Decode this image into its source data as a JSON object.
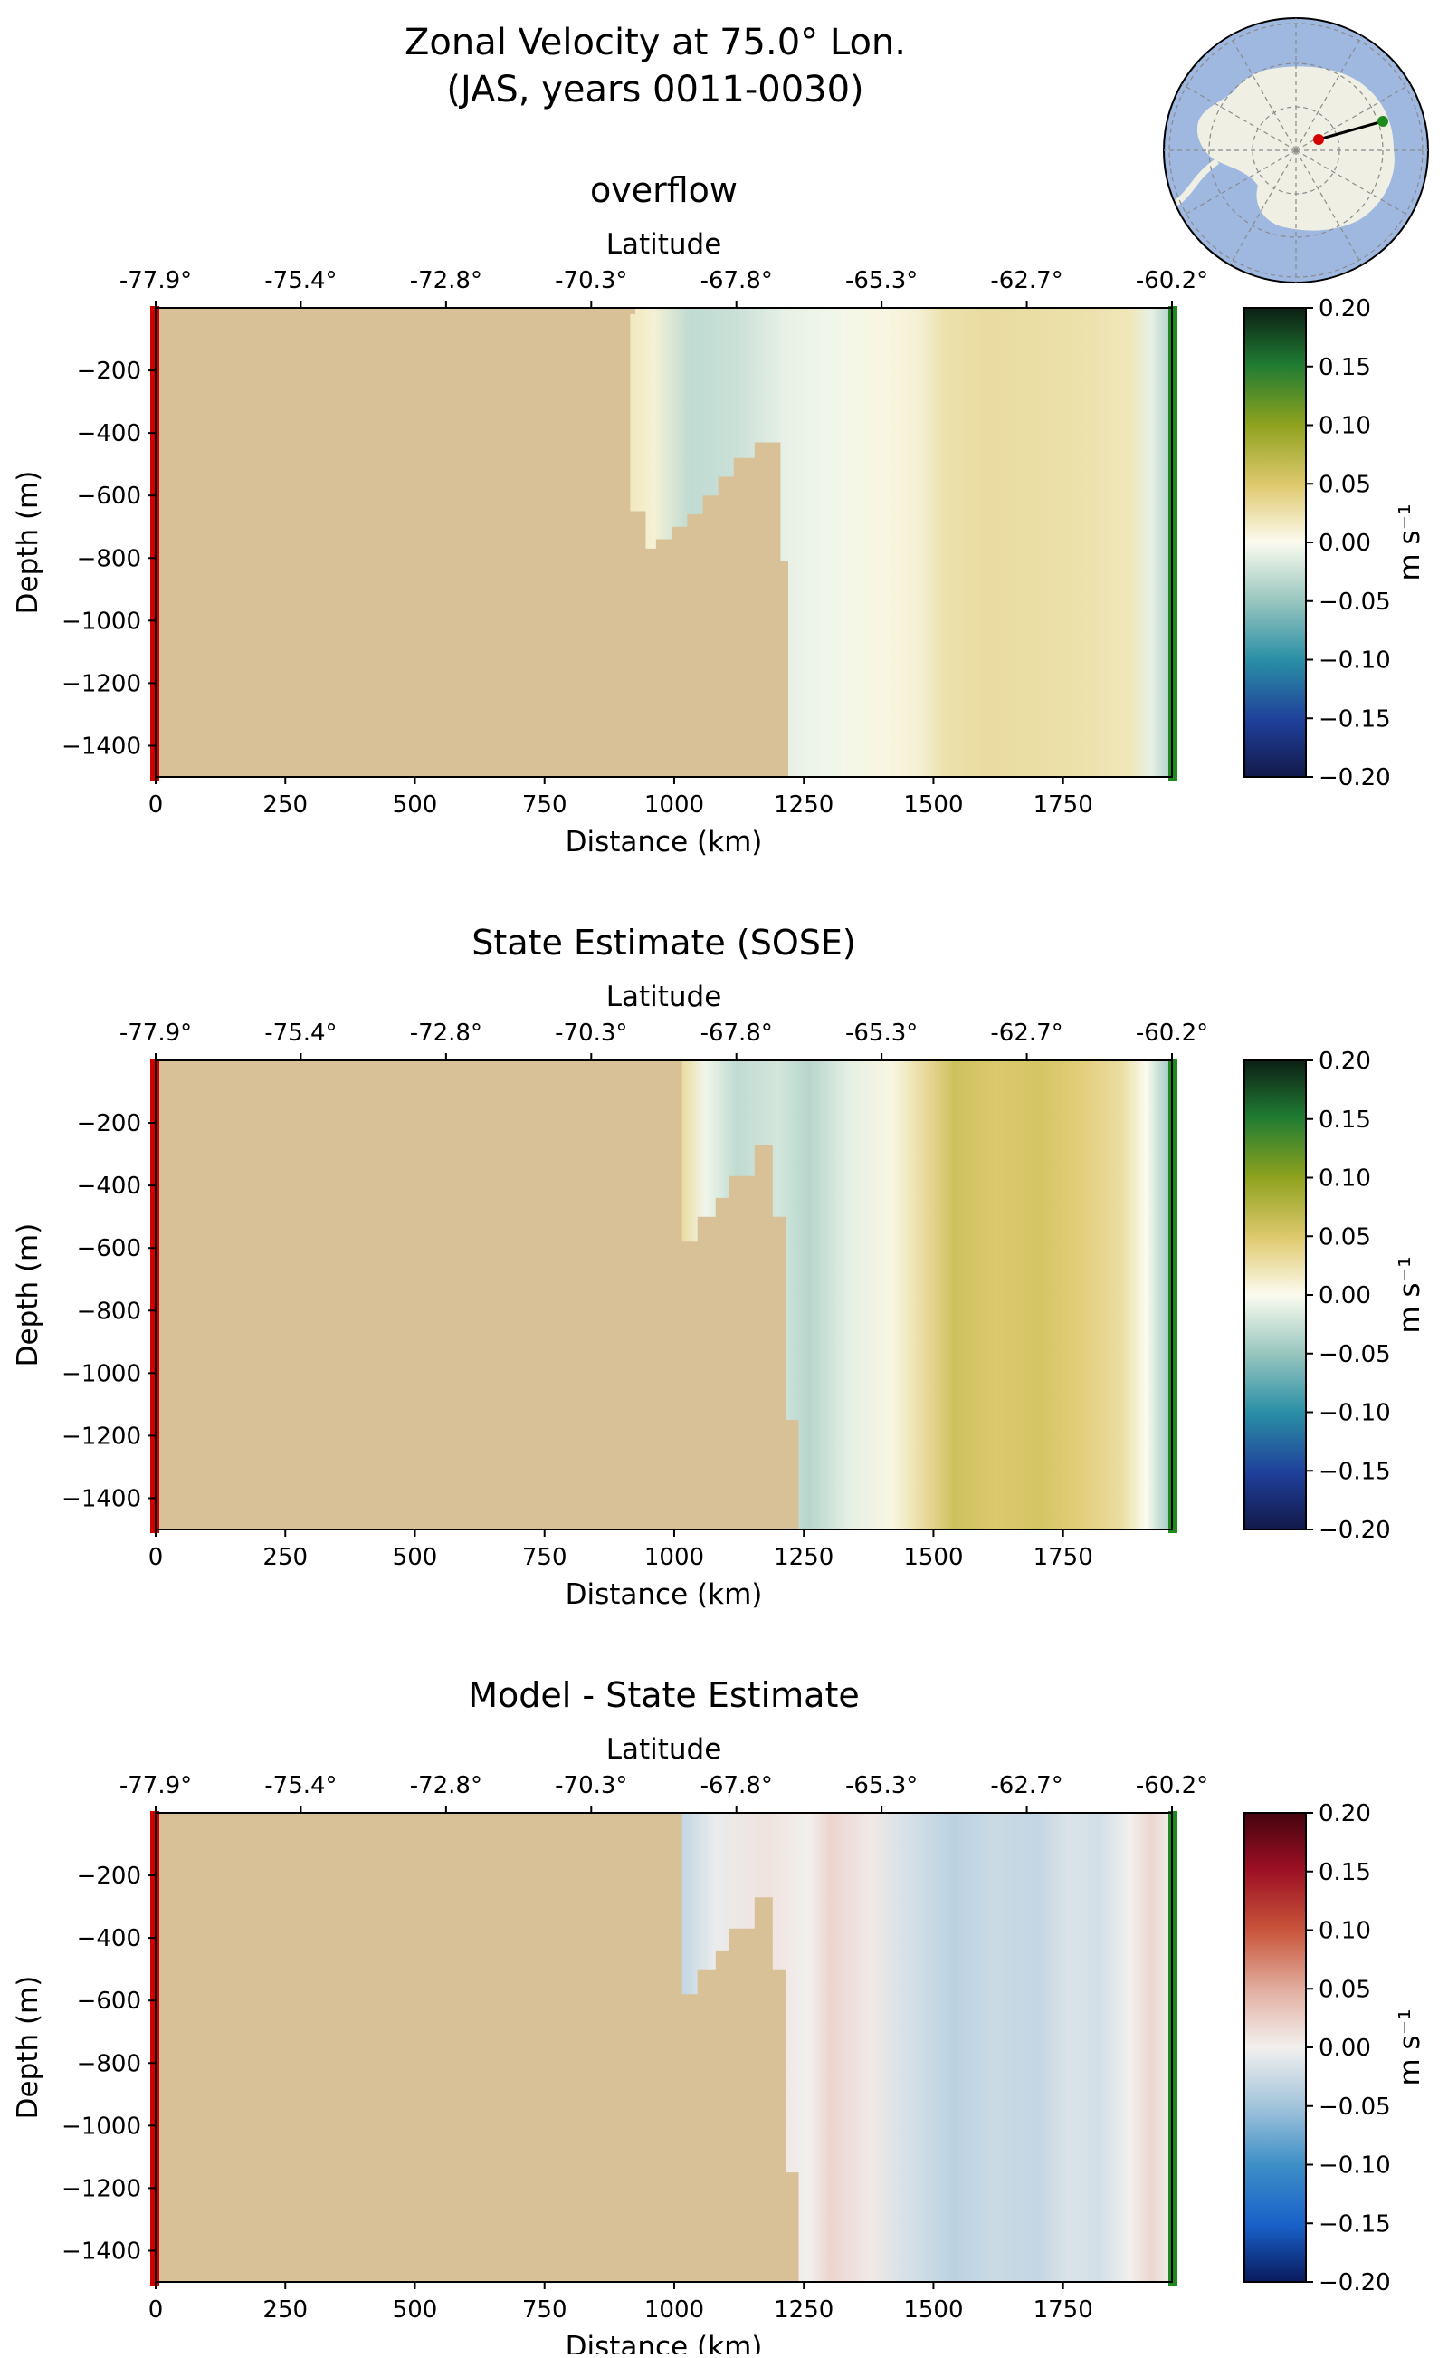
{
  "figure": {
    "title_line1": "Zonal Velocity at 75.0° Lon.",
    "title_line2": "(JAS, years 0011-0030)"
  },
  "colors": {
    "land": "#d8c097",
    "section_start": "#d40000",
    "section_end": "#1e8a1e",
    "ocean_on_globe": "#9fb8e0",
    "antarctica_on_globe": "#f0efe3"
  },
  "inset_map": {
    "type": "south-polar-stereographic",
    "section_start_lat": -77.9,
    "section_end_lat": -60.2,
    "longitude": 75.0
  },
  "chart_data": [
    {
      "type": "heatmap",
      "title": "overflow",
      "xlabel": "Distance (km)",
      "ylabel": "Depth (m)",
      "top_xlabel": "Latitude",
      "xlim": [
        0,
        1960
      ],
      "ylim": [
        -1500,
        0
      ],
      "x_ticks": [
        0,
        250,
        500,
        750,
        1000,
        1250,
        1500,
        1750
      ],
      "y_ticks": [
        -200,
        -400,
        -600,
        -800,
        -1000,
        -1200,
        -1400
      ],
      "top_ticks": [
        "-77.9°",
        "-75.4°",
        "-72.8°",
        "-70.3°",
        "-67.8°",
        "-65.3°",
        "-62.7°",
        "-60.2°"
      ],
      "colorbar": {
        "label": "m s⁻¹",
        "colormap": "gist_earth-like",
        "vmin": -0.2,
        "vmax": 0.2,
        "ticks": [
          0.2,
          0.15,
          0.1,
          0.05,
          0.0,
          -0.05,
          -0.1,
          -0.15,
          -0.2
        ]
      },
      "bathymetry": [
        [
          0,
          0
        ],
        [
          925,
          0
        ],
        [
          925,
          -20
        ],
        [
          915,
          -20
        ],
        [
          915,
          -650
        ],
        [
          945,
          -650
        ],
        [
          945,
          -770
        ],
        [
          965,
          -770
        ],
        [
          965,
          -740
        ],
        [
          995,
          -740
        ],
        [
          995,
          -700
        ],
        [
          1025,
          -700
        ],
        [
          1025,
          -660
        ],
        [
          1055,
          -660
        ],
        [
          1055,
          -600
        ],
        [
          1085,
          -600
        ],
        [
          1085,
          -540
        ],
        [
          1115,
          -540
        ],
        [
          1115,
          -480
        ],
        [
          1155,
          -480
        ],
        [
          1155,
          -430
        ],
        [
          1205,
          -430
        ],
        [
          1205,
          -810
        ],
        [
          1220,
          -810
        ],
        [
          1220,
          -1500
        ],
        [
          0,
          -1500
        ]
      ],
      "velocity_columns": [
        {
          "x": 910,
          "value": 0.02
        },
        {
          "x": 960,
          "value": 0.01
        },
        {
          "x": 1030,
          "value": -0.03
        },
        {
          "x": 1120,
          "value": -0.025
        },
        {
          "x": 1210,
          "value": -0.01
        },
        {
          "x": 1300,
          "value": -0.005
        },
        {
          "x": 1400,
          "value": 0.005
        },
        {
          "x": 1470,
          "value": 0.01
        },
        {
          "x": 1520,
          "value": 0.025
        },
        {
          "x": 1600,
          "value": 0.03
        },
        {
          "x": 1700,
          "value": 0.028
        },
        {
          "x": 1800,
          "value": 0.025
        },
        {
          "x": 1880,
          "value": 0.02
        },
        {
          "x": 1920,
          "value": -0.01
        },
        {
          "x": 1960,
          "value": -0.04
        }
      ]
    },
    {
      "type": "heatmap",
      "title": "State Estimate (SOSE)",
      "xlabel": "Distance (km)",
      "ylabel": "Depth (m)",
      "top_xlabel": "Latitude",
      "xlim": [
        0,
        1960
      ],
      "ylim": [
        -1500,
        0
      ],
      "x_ticks": [
        0,
        250,
        500,
        750,
        1000,
        1250,
        1500,
        1750
      ],
      "y_ticks": [
        -200,
        -400,
        -600,
        -800,
        -1000,
        -1200,
        -1400
      ],
      "top_ticks": [
        "-77.9°",
        "-75.4°",
        "-72.8°",
        "-70.3°",
        "-67.8°",
        "-65.3°",
        "-62.7°",
        "-60.2°"
      ],
      "colorbar": {
        "label": "m s⁻¹",
        "colormap": "gist_earth-like",
        "vmin": -0.2,
        "vmax": 0.2,
        "ticks": [
          0.2,
          0.15,
          0.1,
          0.05,
          0.0,
          -0.05,
          -0.1,
          -0.15,
          -0.2
        ]
      },
      "bathymetry": [
        [
          0,
          0
        ],
        [
          1015,
          0
        ],
        [
          1015,
          -580
        ],
        [
          1045,
          -580
        ],
        [
          1045,
          -500
        ],
        [
          1080,
          -500
        ],
        [
          1080,
          -440
        ],
        [
          1105,
          -440
        ],
        [
          1105,
          -370
        ],
        [
          1155,
          -370
        ],
        [
          1155,
          -270
        ],
        [
          1190,
          -270
        ],
        [
          1190,
          -500
        ],
        [
          1215,
          -500
        ],
        [
          1215,
          -1150
        ],
        [
          1240,
          -1150
        ],
        [
          1240,
          -1500
        ],
        [
          0,
          -1500
        ]
      ],
      "velocity_columns": [
        {
          "x": 1015,
          "value": 0.03
        },
        {
          "x": 1060,
          "value": -0.005
        },
        {
          "x": 1120,
          "value": -0.03
        },
        {
          "x": 1200,
          "value": -0.02
        },
        {
          "x": 1260,
          "value": -0.035
        },
        {
          "x": 1340,
          "value": -0.01
        },
        {
          "x": 1420,
          "value": 0.005
        },
        {
          "x": 1480,
          "value": 0.03
        },
        {
          "x": 1540,
          "value": 0.06
        },
        {
          "x": 1620,
          "value": 0.05
        },
        {
          "x": 1700,
          "value": 0.055
        },
        {
          "x": 1780,
          "value": 0.045
        },
        {
          "x": 1860,
          "value": 0.03
        },
        {
          "x": 1910,
          "value": 0.0
        },
        {
          "x": 1960,
          "value": -0.05
        }
      ]
    },
    {
      "type": "heatmap",
      "title": "Model - State Estimate",
      "xlabel": "Distance (km)",
      "ylabel": "Depth (m)",
      "top_xlabel": "Latitude",
      "xlim": [
        0,
        1960
      ],
      "ylim": [
        -1500,
        0
      ],
      "x_ticks": [
        0,
        250,
        500,
        750,
        1000,
        1250,
        1500,
        1750
      ],
      "y_ticks": [
        -200,
        -400,
        -600,
        -800,
        -1000,
        -1200,
        -1400
      ],
      "top_ticks": [
        "-77.9°",
        "-75.4°",
        "-72.8°",
        "-70.3°",
        "-67.8°",
        "-65.3°",
        "-62.7°",
        "-60.2°"
      ],
      "colorbar": {
        "label": "m s⁻¹",
        "colormap": "RdBu_r-like",
        "vmin": -0.2,
        "vmax": 0.2,
        "ticks": [
          0.2,
          0.15,
          0.1,
          0.05,
          0.0,
          -0.05,
          -0.1,
          -0.15,
          -0.2
        ]
      },
      "bathymetry": [
        [
          0,
          0
        ],
        [
          1015,
          0
        ],
        [
          1015,
          -580
        ],
        [
          1045,
          -580
        ],
        [
          1045,
          -500
        ],
        [
          1080,
          -500
        ],
        [
          1080,
          -440
        ],
        [
          1105,
          -440
        ],
        [
          1105,
          -370
        ],
        [
          1155,
          -370
        ],
        [
          1155,
          -270
        ],
        [
          1190,
          -270
        ],
        [
          1190,
          -500
        ],
        [
          1215,
          -500
        ],
        [
          1215,
          -1150
        ],
        [
          1240,
          -1150
        ],
        [
          1240,
          -1500
        ],
        [
          0,
          -1500
        ]
      ],
      "velocity_columns": [
        {
          "x": 1015,
          "value": -0.03
        },
        {
          "x": 1080,
          "value": -0.005
        },
        {
          "x": 1180,
          "value": 0.01
        },
        {
          "x": 1260,
          "value": 0.0
        },
        {
          "x": 1300,
          "value": 0.02
        },
        {
          "x": 1380,
          "value": 0.005
        },
        {
          "x": 1460,
          "value": -0.02
        },
        {
          "x": 1540,
          "value": -0.035
        },
        {
          "x": 1620,
          "value": -0.025
        },
        {
          "x": 1700,
          "value": -0.03
        },
        {
          "x": 1760,
          "value": -0.015
        },
        {
          "x": 1820,
          "value": -0.02
        },
        {
          "x": 1880,
          "value": 0.0
        },
        {
          "x": 1920,
          "value": 0.02
        },
        {
          "x": 1960,
          "value": 0.0
        }
      ]
    }
  ]
}
